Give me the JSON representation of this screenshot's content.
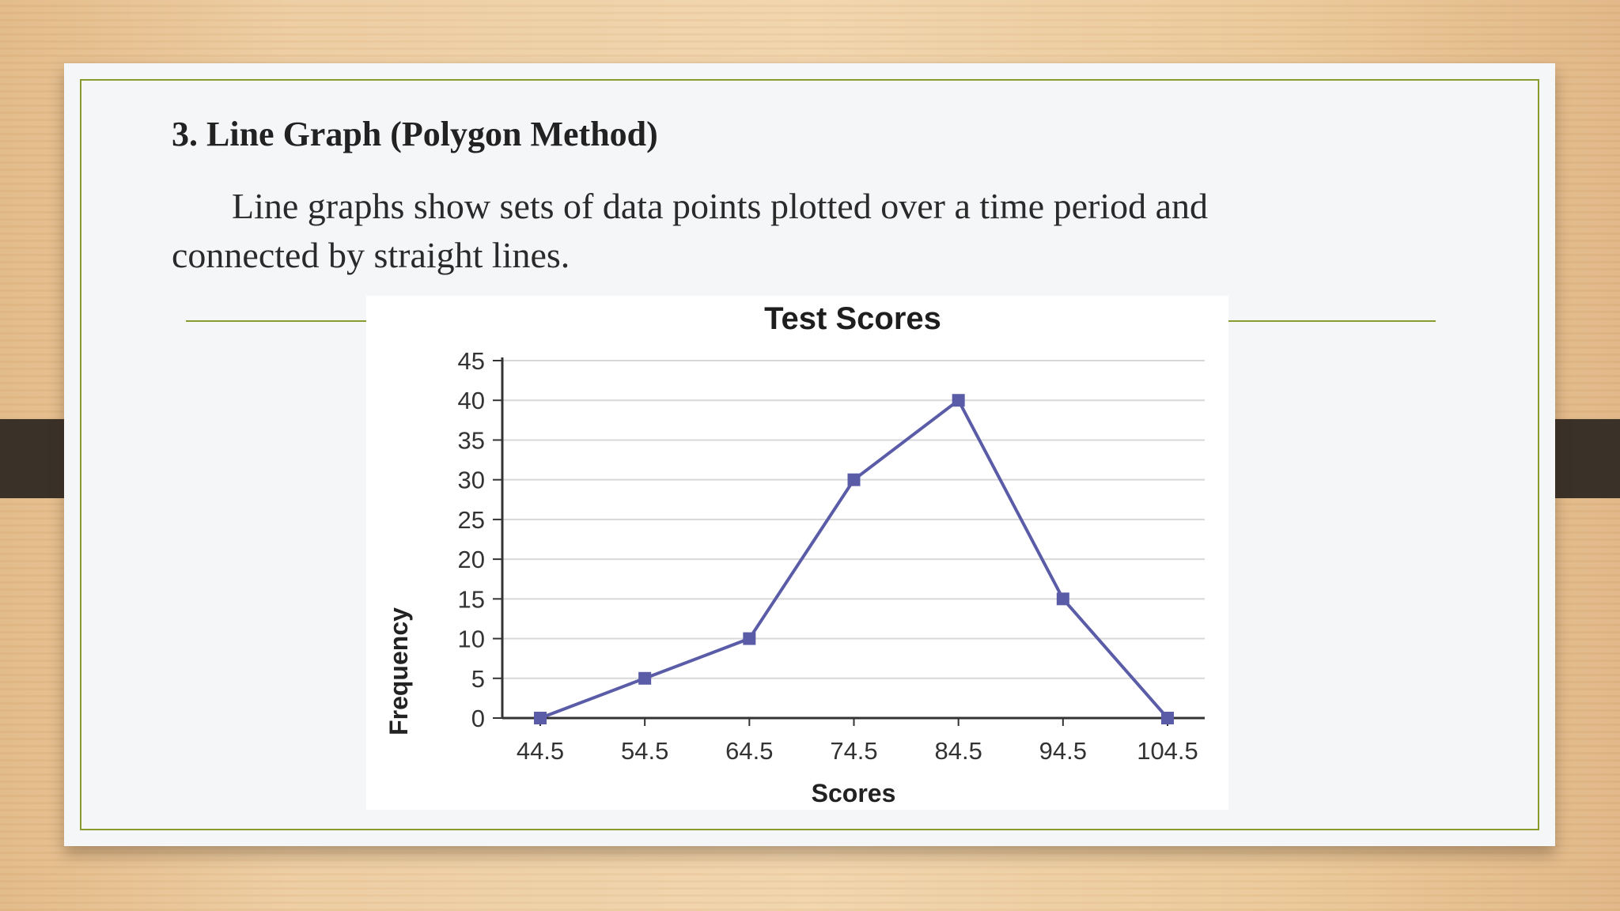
{
  "slide": {
    "title": "3. Line Graph (Polygon Method)",
    "body": "Line graphs show sets of data points plotted over a time period and connected by straight lines."
  },
  "colors": {
    "frame": "#8a9a2e",
    "series": "#5a5ca8",
    "grid": "#d8d8d8",
    "axis": "#333333"
  },
  "chart_data": {
    "type": "line",
    "title": "Test Scores",
    "xlabel": "Scores",
    "ylabel": "Frequency",
    "x": [
      44.5,
      54.5,
      64.5,
      74.5,
      84.5,
      94.5,
      104.5
    ],
    "x_tick_labels": [
      "44.5",
      "54.5",
      "64.5",
      "74.5",
      "84.5",
      "94.5",
      "104.5"
    ],
    "series": [
      {
        "values": [
          0,
          5,
          10,
          30,
          40,
          15,
          0
        ]
      }
    ],
    "ylim": [
      0,
      45
    ],
    "y_ticks": [
      0,
      5,
      10,
      15,
      20,
      25,
      30,
      35,
      40,
      45
    ],
    "grid": true,
    "legend": "none",
    "marker": "square"
  }
}
